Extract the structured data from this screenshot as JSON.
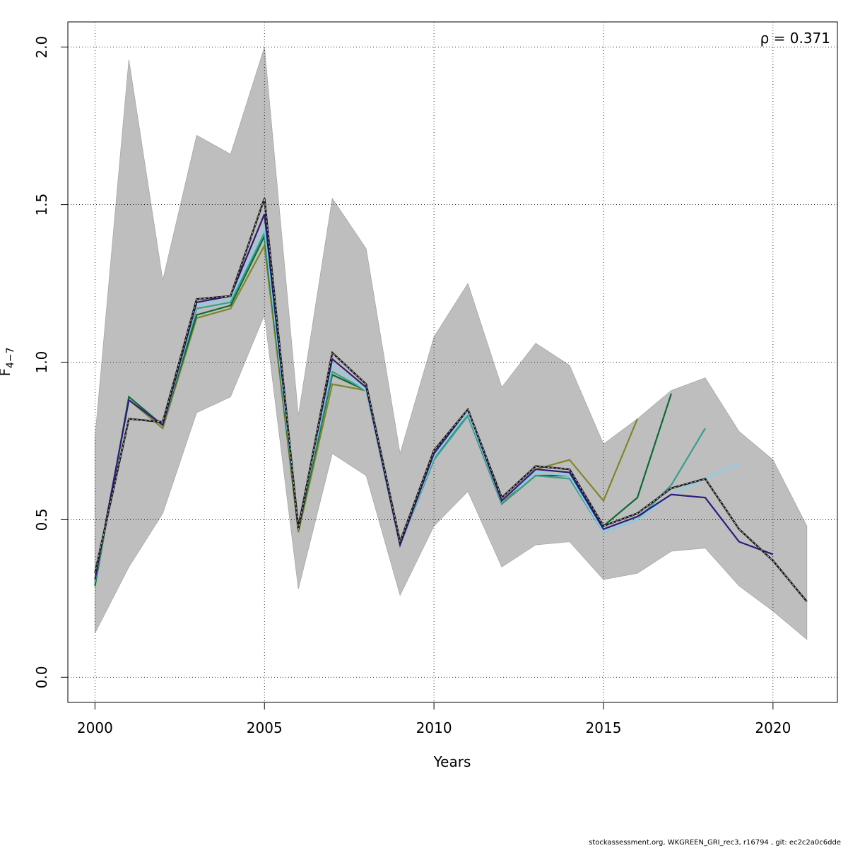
{
  "chart_data": {
    "type": "line",
    "title": "",
    "xlabel": "Years",
    "ylabel": "F",
    "ylabel_subscript": "4−7",
    "annotation": "ρ = 0.371",
    "xlim": [
      1999.2,
      2021.9
    ],
    "ylim": [
      -0.08,
      2.08
    ],
    "x_ticks": [
      2000,
      2005,
      2010,
      2015,
      2020
    ],
    "y_ticks": [
      0.0,
      0.5,
      1.0,
      1.5,
      2.0
    ],
    "x_tick_labels": [
      "2000",
      "2005",
      "2010",
      "2015",
      "2020"
    ],
    "y_tick_labels": [
      "0.0",
      "0.5",
      "1.0",
      "1.5",
      "2.0"
    ],
    "grid": true,
    "confidence_band": {
      "x": [
        2000,
        2001,
        2002,
        2003,
        2004,
        2005,
        2006,
        2007,
        2008,
        2009,
        2010,
        2011,
        2012,
        2013,
        2014,
        2015,
        2016,
        2017,
        2018,
        2019,
        2020,
        2021
      ],
      "upper": [
        0.76,
        1.96,
        1.26,
        1.72,
        1.66,
        2.0,
        0.83,
        1.52,
        1.36,
        0.71,
        1.08,
        1.25,
        0.92,
        1.06,
        0.99,
        0.74,
        0.82,
        0.91,
        0.95,
        0.78,
        0.69,
        0.48
      ],
      "lower": [
        0.14,
        0.35,
        0.52,
        0.84,
        0.89,
        1.15,
        0.28,
        0.71,
        0.64,
        0.26,
        0.48,
        0.59,
        0.35,
        0.42,
        0.43,
        0.31,
        0.33,
        0.4,
        0.41,
        0.29,
        0.21,
        0.12
      ],
      "color": "#bebebe"
    },
    "series": [
      {
        "color": "#808528",
        "x": [
          2000,
          2001,
          2002,
          2003,
          2004,
          2005,
          2006,
          2007,
          2008,
          2009,
          2010,
          2011,
          2012,
          2013,
          2014,
          2015,
          2016
        ],
        "values": [
          0.3,
          0.88,
          0.79,
          1.14,
          1.17,
          1.37,
          0.46,
          0.93,
          0.91,
          0.43,
          0.7,
          0.83,
          0.55,
          0.66,
          0.69,
          0.56,
          0.82
        ]
      },
      {
        "color": "#0a6b2e",
        "x": [
          2000,
          2001,
          2002,
          2003,
          2004,
          2005,
          2006,
          2007,
          2008,
          2009,
          2010,
          2011,
          2012,
          2013,
          2014,
          2015,
          2016,
          2017
        ],
        "values": [
          0.29,
          0.89,
          0.8,
          1.15,
          1.18,
          1.4,
          0.47,
          0.96,
          0.91,
          0.42,
          0.7,
          0.83,
          0.55,
          0.64,
          0.64,
          0.48,
          0.57,
          0.9
        ]
      },
      {
        "color": "#3a9e8e",
        "x": [
          2000,
          2001,
          2002,
          2003,
          2004,
          2005,
          2006,
          2007,
          2008,
          2009,
          2010,
          2011,
          2012,
          2013,
          2014,
          2015,
          2016,
          2017,
          2018
        ],
        "values": [
          0.3,
          0.88,
          0.8,
          1.17,
          1.19,
          1.41,
          0.48,
          0.97,
          0.91,
          0.42,
          0.69,
          0.83,
          0.55,
          0.64,
          0.63,
          0.46,
          0.5,
          0.61,
          0.79
        ]
      },
      {
        "color": "#87ceeb",
        "x": [
          2000,
          2001,
          2002,
          2003,
          2004,
          2005,
          2006,
          2007,
          2008,
          2009,
          2010,
          2011,
          2012,
          2013,
          2014,
          2015,
          2016,
          2017,
          2018,
          2019
        ],
        "values": [
          0.31,
          0.88,
          0.8,
          1.18,
          1.2,
          1.43,
          0.48,
          0.99,
          0.91,
          0.42,
          0.7,
          0.84,
          0.56,
          0.65,
          0.64,
          0.46,
          0.5,
          0.58,
          0.63,
          0.68
        ]
      },
      {
        "color": "#2e1a7a",
        "x": [
          2000,
          2001,
          2002,
          2003,
          2004,
          2005,
          2006,
          2007,
          2008,
          2009,
          2010,
          2011,
          2012,
          2013,
          2014,
          2015,
          2016,
          2017,
          2018,
          2019,
          2020
        ],
        "values": [
          0.31,
          0.88,
          0.8,
          1.19,
          1.21,
          1.47,
          0.48,
          1.01,
          0.92,
          0.42,
          0.71,
          0.85,
          0.56,
          0.66,
          0.65,
          0.47,
          0.51,
          0.58,
          0.57,
          0.43,
          0.39
        ]
      },
      {
        "color": "#1a1a1a",
        "dashed": true,
        "x": [
          2000,
          2001,
          2002,
          2003,
          2004,
          2005,
          2006,
          2007,
          2008,
          2009,
          2010,
          2011,
          2012,
          2013,
          2014,
          2015,
          2016,
          2017,
          2018,
          2019,
          2020,
          2021
        ],
        "values": [
          0.33,
          0.82,
          0.81,
          1.2,
          1.21,
          1.52,
          0.47,
          1.03,
          0.93,
          0.43,
          0.72,
          0.85,
          0.57,
          0.67,
          0.66,
          0.48,
          0.52,
          0.6,
          0.63,
          0.47,
          0.37,
          0.24
        ]
      }
    ]
  },
  "footer": "stockassessment.org, WKGREEN_GRI_rec3, r16794 , git: ec2c2a0c6dde"
}
